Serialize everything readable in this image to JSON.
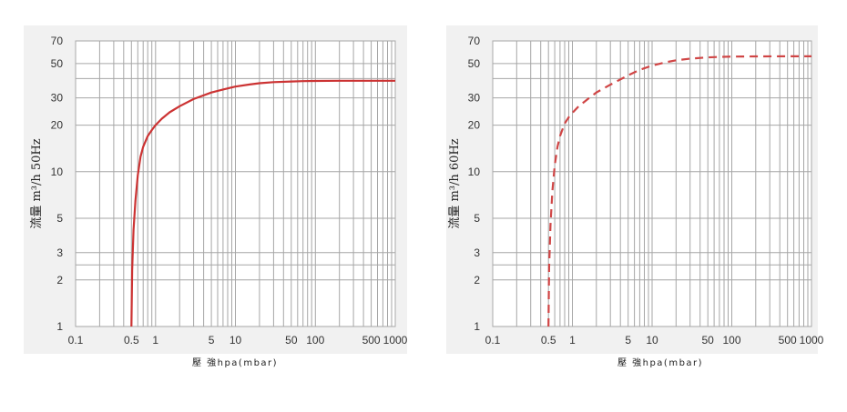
{
  "chart_data": [
    {
      "type": "line",
      "ylabel": "流量 m³/h 50Hz",
      "xlabel": "壓 強hpa(mbar)",
      "x_scale": "log",
      "y_scale": "log",
      "xlim": [
        0.1,
        1000
      ],
      "ylim": [
        1,
        70
      ],
      "x_tick_labels": [
        {
          "value": 0.1,
          "label": "0.1"
        },
        {
          "value": 0.5,
          "label": "0.5"
        },
        {
          "value": 1,
          "label": "1"
        },
        {
          "value": 5,
          "label": "5"
        },
        {
          "value": 10,
          "label": "10"
        },
        {
          "value": 50,
          "label": "50"
        },
        {
          "value": 100,
          "label": "100"
        },
        {
          "value": 500,
          "label": "500"
        },
        {
          "value": 1000,
          "label": "1000"
        }
      ],
      "y_tick_labels": [
        {
          "value": 1,
          "label": "1"
        },
        {
          "value": 2,
          "label": "2"
        },
        {
          "value": 3,
          "label": "3"
        },
        {
          "value": 5,
          "label": "5"
        },
        {
          "value": 10,
          "label": "10"
        },
        {
          "value": 20,
          "label": "20"
        },
        {
          "value": 30,
          "label": "30"
        },
        {
          "value": 50,
          "label": "50"
        },
        {
          "value": 70,
          "label": "70"
        }
      ],
      "grid": true,
      "series": [
        {
          "line_style": "solid",
          "color": "#cc3333",
          "x": [
            0.5,
            0.51,
            0.53,
            0.56,
            0.6,
            0.65,
            0.7,
            0.8,
            0.9,
            1,
            1.2,
            1.5,
            2,
            3,
            5,
            7,
            10,
            15,
            20,
            30,
            50,
            70,
            100,
            200,
            500,
            1000
          ],
          "y": [
            1,
            2.3,
            4.2,
            6.5,
            9.5,
            12.5,
            14.5,
            17,
            18.6,
            20,
            22,
            24.2,
            26.5,
            29.5,
            32.5,
            34,
            35.5,
            36.6,
            37.3,
            37.9,
            38.3,
            38.5,
            38.6,
            38.7,
            38.7,
            38.7
          ]
        }
      ]
    },
    {
      "type": "line",
      "ylabel": "流量 m³/h 60Hz",
      "xlabel": "壓 強hpa(mbar)",
      "x_scale": "log",
      "y_scale": "log",
      "xlim": [
        0.1,
        1000
      ],
      "ylim": [
        1,
        70
      ],
      "x_tick_labels": [
        {
          "value": 0.1,
          "label": "0.1"
        },
        {
          "value": 0.5,
          "label": "0.5"
        },
        {
          "value": 1,
          "label": "1"
        },
        {
          "value": 5,
          "label": "5"
        },
        {
          "value": 10,
          "label": "10"
        },
        {
          "value": 50,
          "label": "50"
        },
        {
          "value": 100,
          "label": "100"
        },
        {
          "value": 500,
          "label": "500"
        },
        {
          "value": 1000,
          "label": "1000"
        }
      ],
      "y_tick_labels": [
        {
          "value": 1,
          "label": "1"
        },
        {
          "value": 2,
          "label": "2"
        },
        {
          "value": 3,
          "label": "3"
        },
        {
          "value": 5,
          "label": "5"
        },
        {
          "value": 10,
          "label": "10"
        },
        {
          "value": 20,
          "label": "20"
        },
        {
          "value": 30,
          "label": "30"
        },
        {
          "value": 50,
          "label": "50"
        },
        {
          "value": 70,
          "label": "70"
        }
      ],
      "grid": true,
      "series": [
        {
          "line_style": "dashed",
          "color": "#d04545",
          "x": [
            0.5,
            0.51,
            0.53,
            0.56,
            0.6,
            0.65,
            0.7,
            0.8,
            0.9,
            1,
            1.2,
            1.5,
            2,
            3,
            5,
            7,
            10,
            15,
            20,
            30,
            50,
            70,
            100,
            200,
            500,
            1000
          ],
          "y": [
            1,
            2.4,
            4.5,
            7.5,
            11,
            14.5,
            17,
            20.5,
            22.5,
            24,
            26.5,
            29,
            32.5,
            36.5,
            42,
            45.5,
            48.5,
            51,
            52.5,
            53.8,
            54.8,
            55.2,
            55.5,
            55.6,
            55.7,
            55.7
          ]
        }
      ]
    }
  ]
}
